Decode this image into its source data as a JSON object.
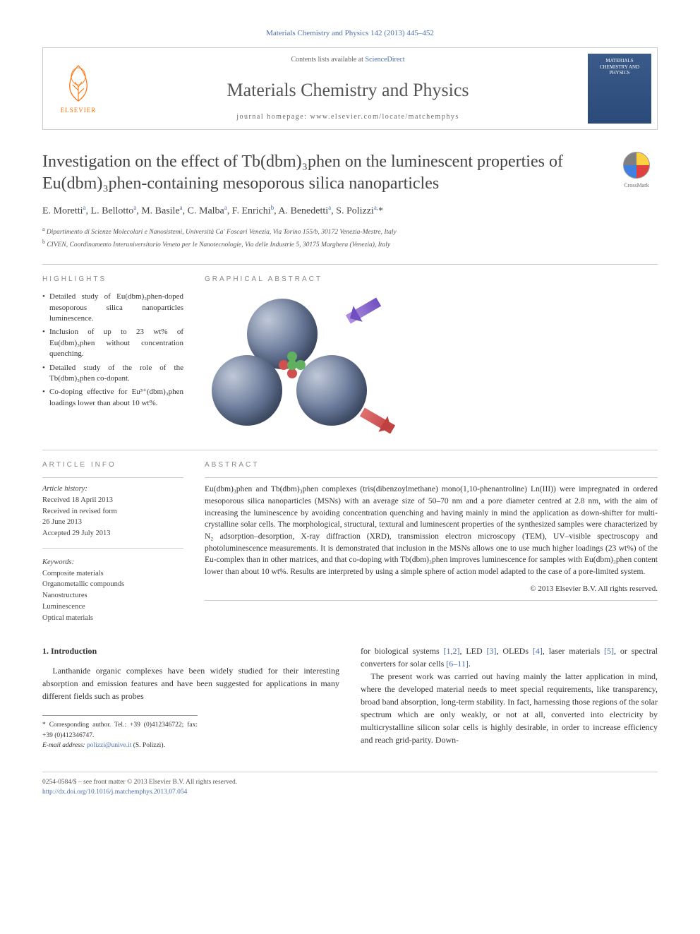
{
  "citation": "Materials Chemistry and Physics 142 (2013) 445–452",
  "header": {
    "contents_prefix": "Contents lists available at ",
    "contents_link": "ScienceDirect",
    "journal": "Materials Chemistry and Physics",
    "homepage_prefix": "journal homepage: ",
    "homepage_url": "www.elsevier.com/locate/matchemphys",
    "cover_line1": "MATERIALS",
    "cover_line2": "CHEMISTRY AND",
    "cover_line3": "PHYSICS",
    "elsevier": "ELSEVIER"
  },
  "title": "Investigation on the effect of Tb(dbm)₃phen on the luminescent properties of Eu(dbm)₃phen-containing mesoporous silica nanoparticles",
  "crossmark": "CrossMark",
  "authors_html": "E. Moretti<sup>a</sup>, L. Bellotto<sup>a</sup>, M. Basile<sup>a</sup>, C. Malba<sup>a</sup>, F. Enrichi<sup>b</sup>, A. Benedetti<sup>a</sup>, S. Polizzi<sup>a,</sup>*",
  "affiliations": {
    "a": "Dipartimento di Scienze Molecolari e Nanosistemi, Università Ca' Foscari Venezia, Via Torino 155/b, 30172 Venezia-Mestre, Italy",
    "b": "CIVEN, Coordinamento Interuniversitario Veneto per le Nanotecnologie, Via delle Industrie 5, 30175 Marghera (Venezia), Italy"
  },
  "highlights_heading": "HIGHLIGHTS",
  "highlights": [
    "Detailed study of Eu(dbm)₃phen-doped mesoporous silica nanoparticles luminescence.",
    "Inclusion of up to 23 wt% of Eu(dbm)₃phen without concentration quenching.",
    "Detailed study of the role of the Tb(dbm)₃phen co-dopant.",
    "Co-doping effective for Eu³⁺(dbm)₃phen loadings lower than about 10 wt%."
  ],
  "graphical_heading": "GRAPHICAL ABSTRACT",
  "article_info_heading": "ARTICLE INFO",
  "history_label": "Article history:",
  "history": {
    "received": "Received 18 April 2013",
    "revised": "Received in revised form",
    "revised_date": "26 June 2013",
    "accepted": "Accepted 29 July 2013"
  },
  "keywords_label": "Keywords:",
  "keywords": [
    "Composite materials",
    "Organometallic compounds",
    "Nanostructures",
    "Luminescence",
    "Optical materials"
  ],
  "abstract_heading": "ABSTRACT",
  "abstract": "Eu(dbm)₃phen and Tb(dbm)₃phen complexes (tris(dibenzoylmethane) mono(1,10-phenantroline) Ln(III)) were impregnated in ordered mesoporous silica nanoparticles (MSNs) with an average size of 50–70 nm and a pore diameter centred at 2.8 nm, with the aim of increasing the luminescence by avoiding concentration quenching and having mainly in mind the application as down-shifter for multi-crystalline solar cells. The morphological, structural, textural and luminescent properties of the synthesized samples were characterized by N₂ adsorption–desorption, X-ray diffraction (XRD), transmission electron microscopy (TEM), UV–visible spectroscopy and photoluminescence measurements. It is demonstrated that inclusion in the MSNs allows one to use much higher loadings (23 wt%) of the Eu-complex than in other matrices, and that co-doping with Tb(dbm)₃phen improves luminescence for samples with Eu(dbm)₃phen content lower than about 10 wt%. Results are interpreted by using a simple sphere of action model adapted to the case of a pore-limited system.",
  "copyright": "© 2013 Elsevier B.V. All rights reserved.",
  "intro_heading": "1. Introduction",
  "intro_p1": "Lanthanide organic complexes have been widely studied for their interesting absorption and emission features and have been suggested for applications in many different fields such as probes",
  "intro_p2_prefix": "for biological systems ",
  "refs_1": "[1,2]",
  "intro_p2_mid1": ", LED ",
  "refs_2": "[3]",
  "intro_p2_mid2": ", OLEDs ",
  "refs_3": "[4]",
  "intro_p2_mid3": ", laser materials ",
  "refs_4": "[5]",
  "intro_p2_mid4": ", or spectral converters for solar cells ",
  "refs_5": "[6–11]",
  "intro_p2_end": ".",
  "intro_p3": "The present work was carried out having mainly the latter application in mind, where the developed material needs to meet special requirements, like transparency, broad band absorption, long-term stability. In fact, harnessing those regions of the solar spectrum which are only weakly, or not at all, converted into electricity by multicrystalline silicon solar cells is highly desirable, in order to increase efficiency and reach grid-parity. Down-",
  "corr": {
    "label": "* Corresponding author. Tel.: +39 (0)412346722; fax: +39 (0)412346747.",
    "email_label": "E-mail address: ",
    "email": "polizzi@unive.it",
    "email_suffix": " (S. Polizzi)."
  },
  "footer": {
    "issn": "0254-0584/$ – see front matter © 2013 Elsevier B.V. All rights reserved.",
    "doi": "http://dx.doi.org/10.1016/j.matchemphys.2013.07.054"
  },
  "colors": {
    "link": "#4c6ea8",
    "elsevier_orange": "#ff6c00",
    "sphere_light": "#c0c8d8",
    "sphere_dark": "#3a4a6a",
    "green_ball": "#60b060",
    "red_ball": "#d05050",
    "arrow_purple": "#7050c0",
    "arrow_red": "#c04040"
  }
}
